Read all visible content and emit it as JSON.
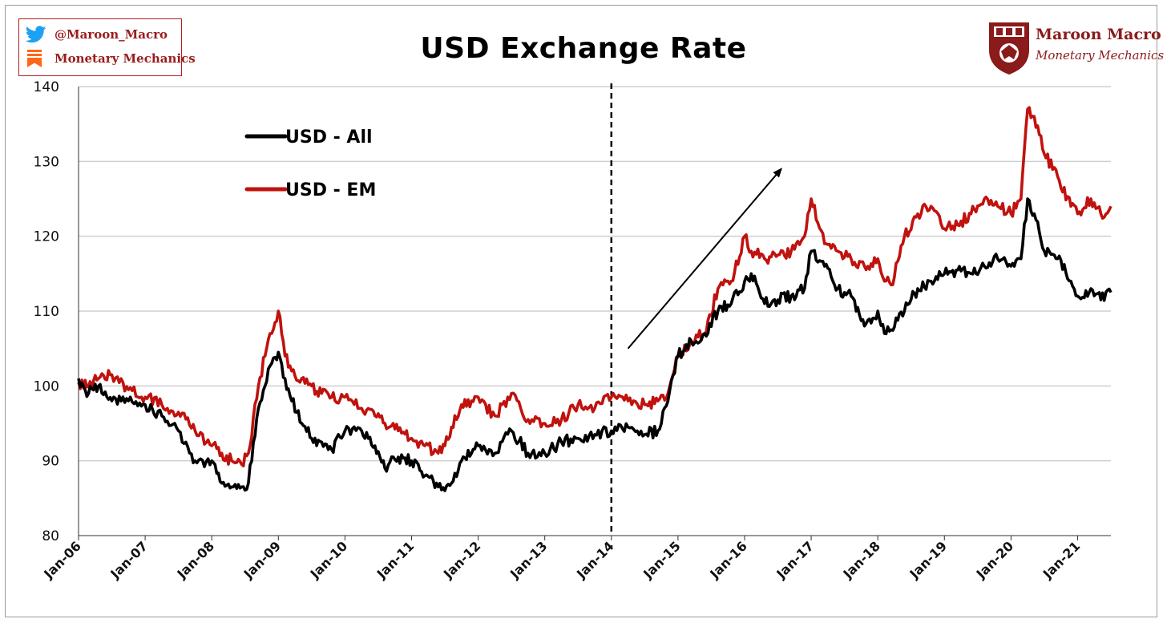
{
  "header": {
    "title": "USD Exchange Rate",
    "twitter_handle": "@Maroon_Macro",
    "substack_name": "Monetary Mechanics"
  },
  "brand": {
    "name": "Maroon Macro",
    "tagline": "Monetary Mechanics"
  },
  "icons": {
    "twitter": "twitter-bird-icon",
    "substack": "substack-icon",
    "crest": "university-crest-icon"
  },
  "colors": {
    "usd_all": "#000000",
    "usd_em": "#c0120e",
    "brand": "#8b1a1a",
    "twitter": "#1da1f2",
    "substack": "#ff6719"
  },
  "chart_data": {
    "type": "line",
    "title": "USD Exchange Rate",
    "xlabel": "",
    "ylabel": "",
    "ylim": [
      80,
      140
    ],
    "yticks": [
      80,
      90,
      100,
      110,
      120,
      130,
      140
    ],
    "x_tick_labels": [
      "Jan-06",
      "Jan-07",
      "Jan-08",
      "Jan-09",
      "Jan-10",
      "Jan-11",
      "Jan-12",
      "Jan-13",
      "Jan-14",
      "Jan-15",
      "Jan-16",
      "Jan-17",
      "Jan-18",
      "Jan-19",
      "Jan-20",
      "Jan-21"
    ],
    "xlim": [
      2006.0,
      2021.5
    ],
    "grid": "horizontal",
    "legend_position": "top-left",
    "vertical_marker": {
      "x": 2014.0,
      "style": "dashed"
    },
    "arrow_annotation": {
      "from": [
        2014.25,
        105
      ],
      "to": [
        2016.55,
        129
      ]
    },
    "series": [
      {
        "name": "USD - All",
        "color": "#000000",
        "x": [
          2006.0,
          2006.15,
          2006.3,
          2006.5,
          2006.75,
          2007.0,
          2007.25,
          2007.5,
          2007.75,
          2008.0,
          2008.15,
          2008.3,
          2008.45,
          2008.55,
          2008.7,
          2008.8,
          2008.9,
          2009.0,
          2009.1,
          2009.2,
          2009.35,
          2009.5,
          2009.65,
          2009.8,
          2010.0,
          2010.25,
          2010.45,
          2010.6,
          2010.8,
          2011.0,
          2011.2,
          2011.4,
          2011.5,
          2011.6,
          2011.75,
          2011.9,
          2012.0,
          2012.25,
          2012.5,
          2012.75,
          2013.0,
          2013.25,
          2013.5,
          2013.75,
          2014.0,
          2014.25,
          2014.5,
          2014.7,
          2014.85,
          2015.0,
          2015.2,
          2015.4,
          2015.6,
          2015.8,
          2016.0,
          2016.1,
          2016.3,
          2016.5,
          2016.7,
          2016.9,
          2017.0,
          2017.2,
          2017.4,
          2017.6,
          2017.8,
          2018.0,
          2018.1,
          2018.2,
          2018.4,
          2018.6,
          2018.8,
          2019.0,
          2019.2,
          2019.4,
          2019.6,
          2019.8,
          2020.0,
          2020.15,
          2020.25,
          2020.35,
          2020.5,
          2020.7,
          2020.9,
          2021.0,
          2021.2,
          2021.35,
          2021.5
        ],
        "values": [
          101,
          99,
          100,
          98,
          98,
          97.5,
          96,
          94,
          90,
          90,
          87,
          86.5,
          86.5,
          87,
          97,
          100,
          103,
          104.5,
          101,
          98,
          95,
          93,
          92.5,
          91.5,
          94,
          94,
          92,
          89,
          90.5,
          90,
          88,
          86.5,
          86,
          87,
          90,
          91,
          92,
          91,
          94,
          91,
          91,
          92.5,
          93,
          93.5,
          94,
          94.5,
          93.5,
          94,
          98,
          104,
          106,
          107,
          110,
          111,
          114,
          115,
          111,
          111.5,
          112,
          113,
          118,
          116,
          113,
          112,
          108,
          110,
          107,
          107.5,
          110,
          113,
          114,
          115,
          115.5,
          115,
          116,
          117,
          116,
          117,
          125,
          123,
          118,
          117,
          114,
          112,
          113,
          111.5,
          112.5
        ]
      },
      {
        "name": "USD - EM",
        "color": "#c0120e",
        "x": [
          2006.0,
          2006.15,
          2006.3,
          2006.5,
          2006.75,
          2007.0,
          2007.25,
          2007.5,
          2007.75,
          2008.0,
          2008.15,
          2008.3,
          2008.45,
          2008.55,
          2008.7,
          2008.8,
          2008.9,
          2009.0,
          2009.1,
          2009.2,
          2009.35,
          2009.5,
          2009.65,
          2009.8,
          2010.0,
          2010.25,
          2010.45,
          2010.6,
          2010.8,
          2011.0,
          2011.2,
          2011.4,
          2011.5,
          2011.6,
          2011.75,
          2011.9,
          2012.0,
          2012.25,
          2012.5,
          2012.75,
          2013.0,
          2013.25,
          2013.5,
          2013.75,
          2014.0,
          2014.25,
          2014.5,
          2014.7,
          2014.85,
          2015.0,
          2015.2,
          2015.4,
          2015.6,
          2015.8,
          2016.0,
          2016.1,
          2016.3,
          2016.5,
          2016.7,
          2016.9,
          2017.0,
          2017.2,
          2017.4,
          2017.6,
          2017.8,
          2018.0,
          2018.1,
          2018.2,
          2018.4,
          2018.6,
          2018.8,
          2019.0,
          2019.2,
          2019.4,
          2019.6,
          2019.8,
          2020.0,
          2020.15,
          2020.25,
          2020.35,
          2020.5,
          2020.7,
          2020.9,
          2021.0,
          2021.2,
          2021.35,
          2021.5
        ],
        "values": [
          100.5,
          100,
          101,
          101.5,
          99.5,
          98.5,
          97.5,
          96.5,
          94,
          92,
          91,
          90,
          89.5,
          91,
          100,
          104,
          107,
          110,
          104,
          102,
          101,
          100,
          99,
          98.5,
          98.5,
          97,
          96,
          95,
          94,
          93,
          92,
          91,
          92,
          94.5,
          97.5,
          98,
          98.5,
          96,
          99,
          95.5,
          95,
          95.5,
          97.5,
          97,
          98.5,
          98,
          97.5,
          98,
          99,
          104,
          106,
          107,
          113,
          114,
          120,
          118,
          117,
          117.5,
          118,
          120,
          125,
          119,
          118,
          117,
          116,
          117,
          114,
          113.5,
          120,
          123,
          124,
          121,
          121.5,
          123,
          125,
          124,
          123,
          125,
          137,
          136,
          131,
          128,
          124,
          123,
          125,
          123,
          124
        ]
      }
    ]
  }
}
